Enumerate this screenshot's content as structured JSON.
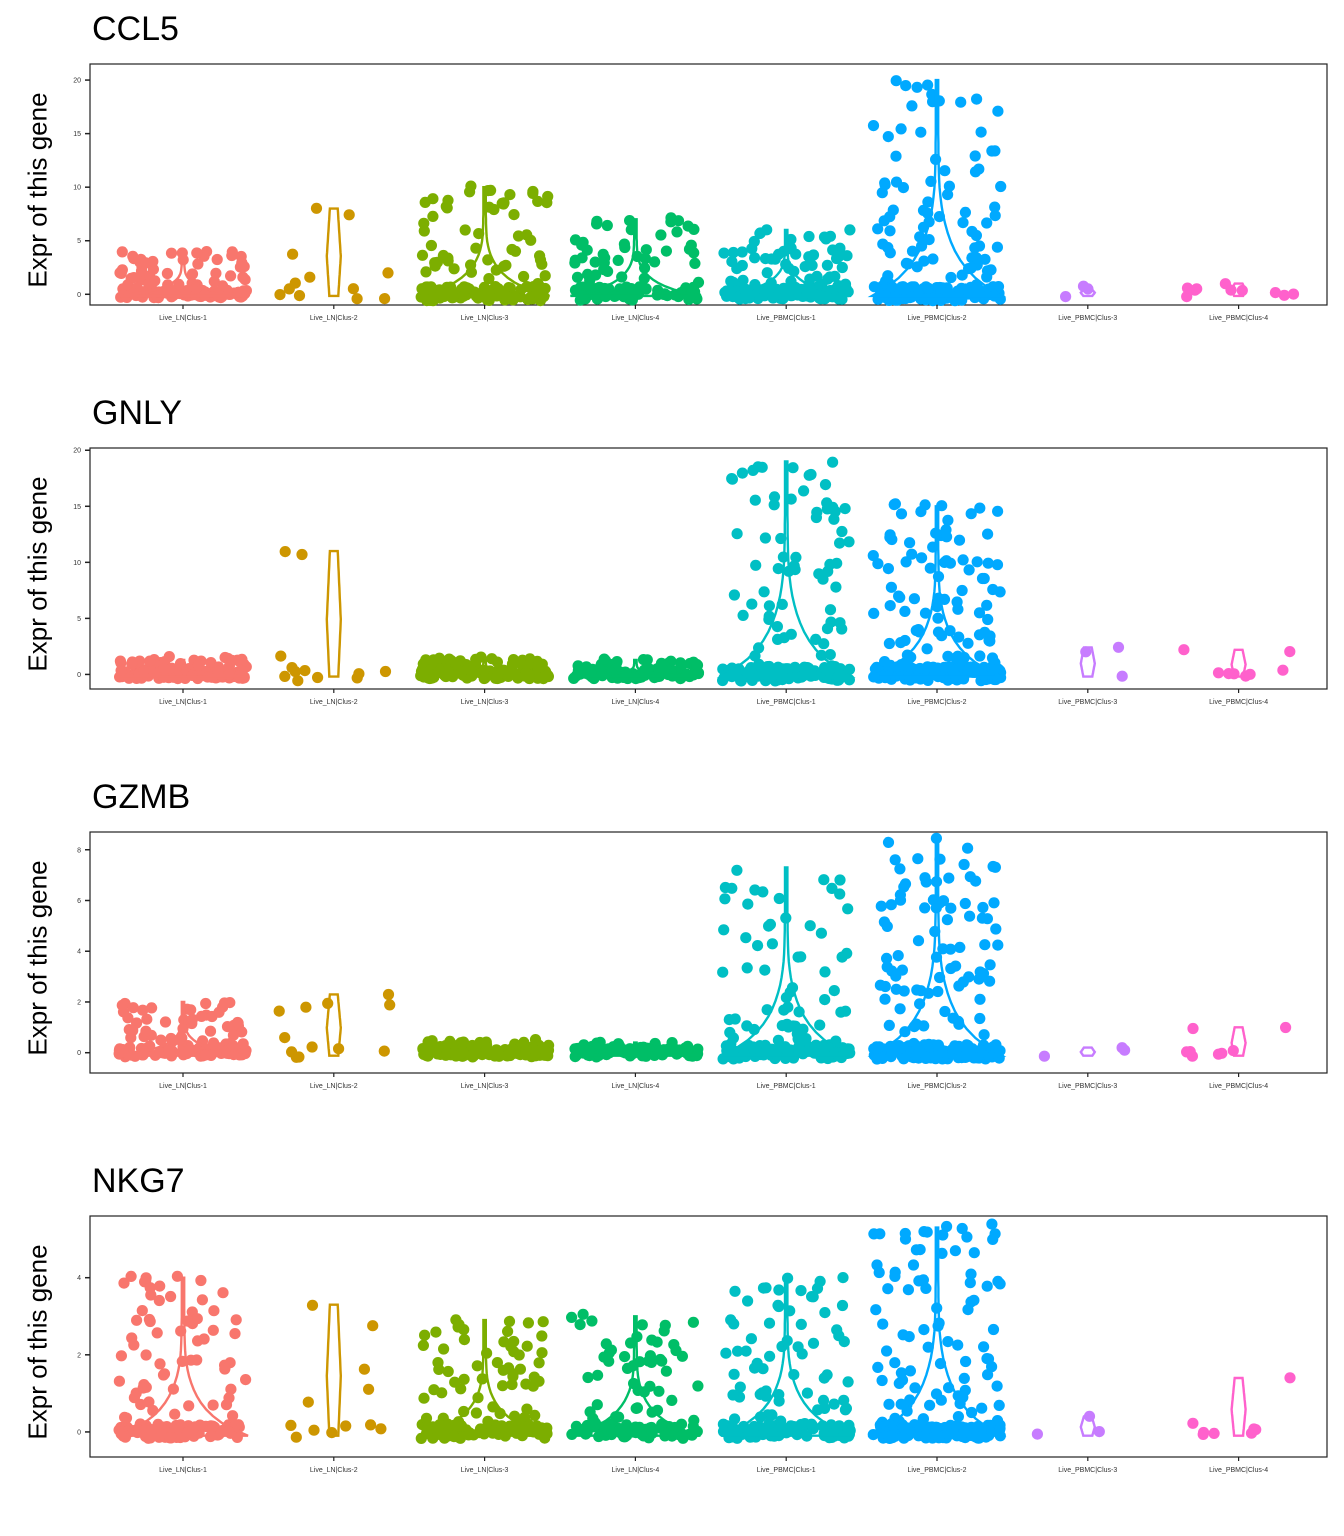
{
  "chart_data": [
    {
      "type": "violin",
      "title": "CCL5",
      "ylabel": "Expr of this gene",
      "xlabel": "",
      "categories": [
        "Live_LN|Clus-1",
        "Live_LN|Clus-2",
        "Live_LN|Clus-3",
        "Live_LN|Clus-4",
        "Live_PBMC|Clus-1",
        "Live_PBMC|Clus-2",
        "Live_PBMC|Clus-3",
        "Live_PBMC|Clus-4"
      ],
      "yticks": [
        0,
        5,
        10,
        15,
        20
      ],
      "ylim": [
        -1,
        21.5
      ],
      "max_values": [
        4,
        8,
        10,
        7,
        6,
        20,
        0.5,
        1
      ],
      "point_counts": [
        140,
        12,
        150,
        110,
        160,
        220,
        3,
        10
      ]
    },
    {
      "type": "violin",
      "title": "GNLY",
      "ylabel": "Expr of this gene",
      "xlabel": "",
      "categories": [
        "Live_LN|Clus-1",
        "Live_LN|Clus-2",
        "Live_LN|Clus-3",
        "Live_LN|Clus-4",
        "Live_PBMC|Clus-1",
        "Live_PBMC|Clus-2",
        "Live_PBMC|Clus-3",
        "Live_PBMC|Clus-4"
      ],
      "yticks": [
        0,
        5,
        10,
        15,
        20
      ],
      "ylim": [
        -1.3,
        20.2
      ],
      "max_values": [
        1.3,
        11,
        1.4,
        1.3,
        19,
        15,
        2.4,
        2.2
      ],
      "point_counts": [
        140,
        12,
        150,
        110,
        160,
        220,
        3,
        8
      ]
    },
    {
      "type": "violin",
      "title": "GZMB",
      "ylabel": "Expr of this gene",
      "xlabel": "",
      "categories": [
        "Live_LN|Clus-1",
        "Live_LN|Clus-2",
        "Live_LN|Clus-3",
        "Live_LN|Clus-4",
        "Live_PBMC|Clus-1",
        "Live_PBMC|Clus-2",
        "Live_PBMC|Clus-3",
        "Live_PBMC|Clus-4"
      ],
      "yticks": [
        0,
        2,
        4,
        6,
        8
      ],
      "ylim": [
        -0.8,
        8.7
      ],
      "max_values": [
        2,
        2.3,
        0.4,
        0.4,
        7.3,
        8.3,
        0.2,
        1
      ],
      "point_counts": [
        140,
        12,
        150,
        110,
        160,
        220,
        3,
        8
      ]
    },
    {
      "type": "violin",
      "title": "NKG7",
      "ylabel": "Expr of this gene",
      "xlabel": "",
      "categories": [
        "Live_LN|Clus-1",
        "Live_LN|Clus-2",
        "Live_LN|Clus-3",
        "Live_LN|Clus-4",
        "Live_PBMC|Clus-1",
        "Live_PBMC|Clus-2",
        "Live_PBMC|Clus-3",
        "Live_PBMC|Clus-4"
      ],
      "yticks": [
        0,
        2,
        4
      ],
      "ylim": [
        -0.65,
        5.6
      ],
      "max_values": [
        4,
        3.3,
        2.9,
        3,
        4,
        5.3,
        0.4,
        1.4
      ],
      "point_counts": [
        140,
        12,
        150,
        110,
        160,
        220,
        3,
        8
      ]
    }
  ],
  "colors": [
    "#F8766D",
    "#CD9600",
    "#7CAE00",
    "#00BE67",
    "#00BFC4",
    "#00A9FF",
    "#C77CFF",
    "#FF61CC"
  ]
}
